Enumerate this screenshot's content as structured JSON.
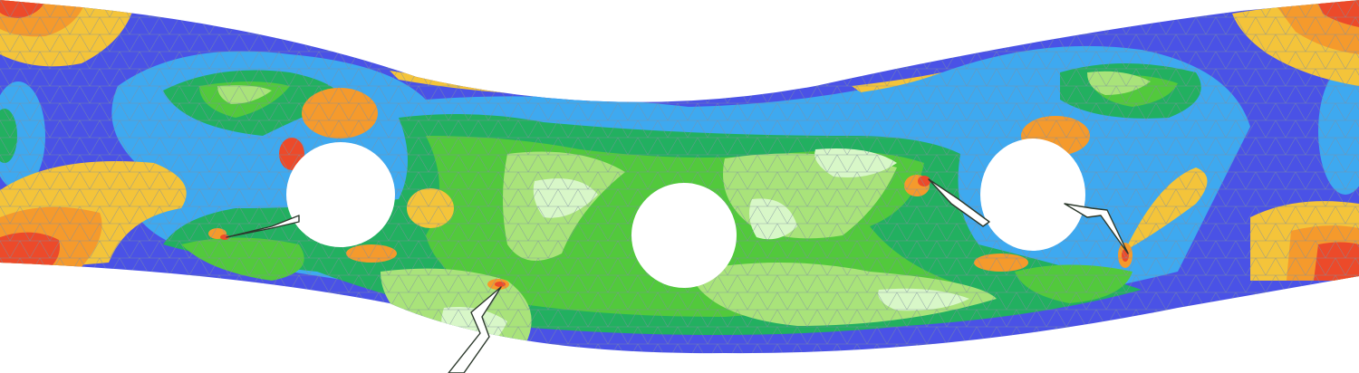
{
  "figure": {
    "description_type": "finite-element stress contour plot of a deformed beam",
    "contour_colors": {
      "level_0_lowest": "#4a52e6",
      "level_1": "#3ea9f0",
      "level_2": "#22b060",
      "level_3": "#52c93c",
      "level_4": "#a9e37a",
      "level_5": "#d8f7c8",
      "level_6": "#f4c43a",
      "level_7": "#f59a2c",
      "level_8_highest": "#ec4a2a"
    },
    "mesh_line_color": "#7f8fa0",
    "crack_color": "#2d3a2d",
    "background": "#ffffff"
  }
}
